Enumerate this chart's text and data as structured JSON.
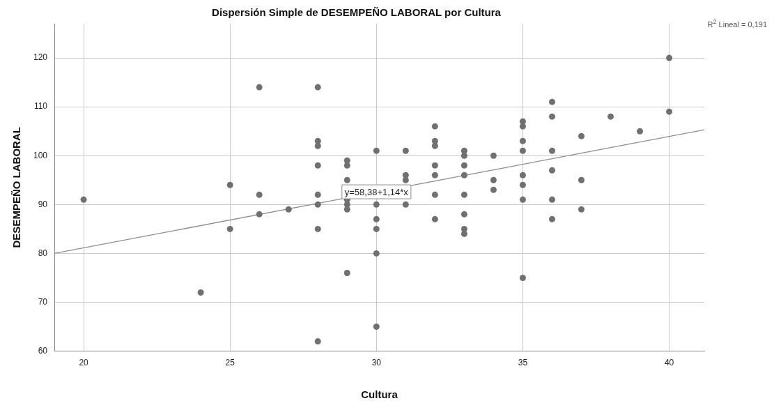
{
  "chart_data": {
    "type": "scatter",
    "title": "Dispersión Simple de DESEMPEÑO LABORAL por Cultura",
    "xlabel": "Cultura",
    "ylabel": "DESEMPEÑO LABORAL",
    "xlim": [
      19,
      41.2
    ],
    "ylim": [
      60,
      127
    ],
    "xticks": [
      20,
      25,
      30,
      35,
      40
    ],
    "yticks": [
      60,
      70,
      80,
      90,
      100,
      110,
      120
    ],
    "grid": true,
    "legend": false,
    "marker": "circle",
    "series": [
      {
        "color": "#707070",
        "x": [
          20,
          24,
          25,
          25,
          26,
          26,
          26,
          27,
          28,
          28,
          28,
          28,
          28,
          28,
          28,
          28,
          29,
          29,
          29,
          29,
          29,
          29,
          29,
          30,
          30,
          30,
          30,
          30,
          30,
          31,
          31,
          31,
          31,
          32,
          32,
          32,
          32,
          32,
          32,
          32,
          33,
          33,
          33,
          33,
          33,
          33,
          33,
          33,
          34,
          34,
          34,
          35,
          35,
          35,
          35,
          35,
          35,
          35,
          35,
          36,
          36,
          36,
          36,
          36,
          36,
          37,
          37,
          37,
          38,
          39,
          40,
          40
        ],
        "values": [
          91,
          72,
          94,
          85,
          114,
          92,
          88,
          89,
          114,
          103,
          102,
          98,
          92,
          90,
          85,
          62,
          99,
          98,
          95,
          91,
          90,
          89,
          76,
          101,
          90,
          87,
          85,
          80,
          65,
          101,
          96,
          95,
          90,
          106,
          103,
          102,
          98,
          96,
          92,
          87,
          101,
          100,
          98,
          96,
          92,
          88,
          85,
          84,
          100,
          95,
          93,
          107,
          106,
          103,
          101,
          96,
          94,
          91,
          75,
          111,
          108,
          101,
          97,
          91,
          87,
          104,
          95,
          89,
          108,
          105,
          120,
          109
        ]
      },
      {
        "type": "line",
        "color": "#8c8c8c",
        "x": [
          19,
          41.2
        ],
        "values": [
          80,
          105.3
        ],
        "marker": "none",
        "line_style": "solid"
      }
    ],
    "annotations": [
      {
        "text": "y=58,38+1,14*x",
        "x": 30,
        "y": 92.6
      },
      "R$^{2}$ Lineal = 0,191"
    ]
  }
}
